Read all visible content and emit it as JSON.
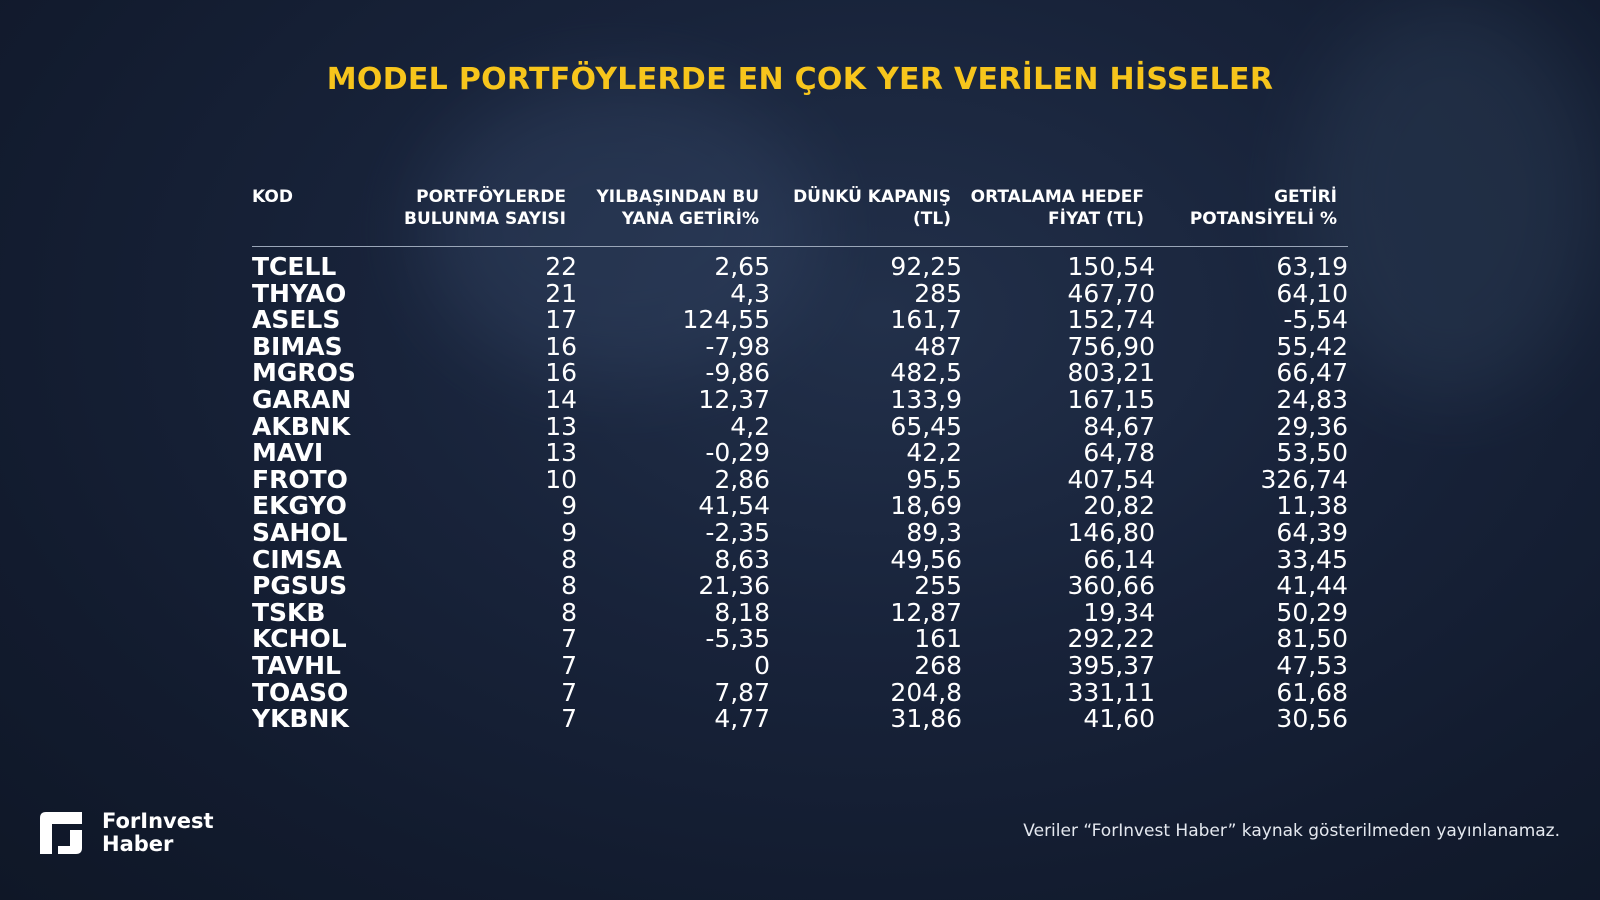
{
  "title": "MODEL PORTFÖYLERDE EN ÇOK YER VERİLEN HİSSELER",
  "columns": [
    "KOD",
    "PORTFÖYLERDE\nBULUNMA SAYISI",
    "YILBAŞINDAN BU\nYANA GETİRİ%",
    "DÜNKÜ KAPANIŞ\n(TL)",
    "ORTALAMA HEDEF\nFİYAT (TL)",
    "GETİRİ\nPOTANSİYELİ %"
  ],
  "rows": [
    [
      "TCELL",
      "22",
      "2,65",
      "92,25",
      "150,54",
      "63,19"
    ],
    [
      "THYAO",
      "21",
      "4,3",
      "285",
      "467,70",
      "64,10"
    ],
    [
      "ASELS",
      "17",
      "124,55",
      "161,7",
      "152,74",
      "-5,54"
    ],
    [
      "BIMAS",
      "16",
      "-7,98",
      "487",
      "756,90",
      "55,42"
    ],
    [
      "MGROS",
      "16",
      "-9,86",
      "482,5",
      "803,21",
      "66,47"
    ],
    [
      "GARAN",
      "14",
      "12,37",
      "133,9",
      "167,15",
      "24,83"
    ],
    [
      "AKBNK",
      "13",
      "4,2",
      "65,45",
      "84,67",
      "29,36"
    ],
    [
      "MAVI",
      "13",
      "-0,29",
      "42,2",
      "64,78",
      "53,50"
    ],
    [
      "FROTO",
      "10",
      "2,86",
      "95,5",
      "407,54",
      "326,74"
    ],
    [
      "EKGYO",
      "9",
      "41,54",
      "18,69",
      "20,82",
      "11,38"
    ],
    [
      "SAHOL",
      "9",
      "-2,35",
      "89,3",
      "146,80",
      "64,39"
    ],
    [
      "CIMSA",
      "8",
      "8,63",
      "49,56",
      "66,14",
      "33,45"
    ],
    [
      "PGSUS",
      "8",
      "21,36",
      "255",
      "360,66",
      "41,44"
    ],
    [
      "TSKB",
      "8",
      "8,18",
      "12,87",
      "19,34",
      "50,29"
    ],
    [
      "KCHOL",
      "7",
      "-5,35",
      "161",
      "292,22",
      "81,50"
    ],
    [
      "TAVHL",
      "7",
      "0",
      "268",
      "395,37",
      "47,53"
    ],
    [
      "TOASO",
      "7",
      "7,87",
      "204,8",
      "331,11",
      "61,68"
    ],
    [
      "YKBNK",
      "7",
      "4,77",
      "31,86",
      "41,60",
      "30,56"
    ]
  ],
  "logo": {
    "line1": "ForInvest",
    "line2": "Haber"
  },
  "note": "Veriler “ForInvest Haber” kaynak gösterilmeden yayınlanamaz.",
  "colors": {
    "title": "#f7c51c",
    "background": "#151f33"
  }
}
